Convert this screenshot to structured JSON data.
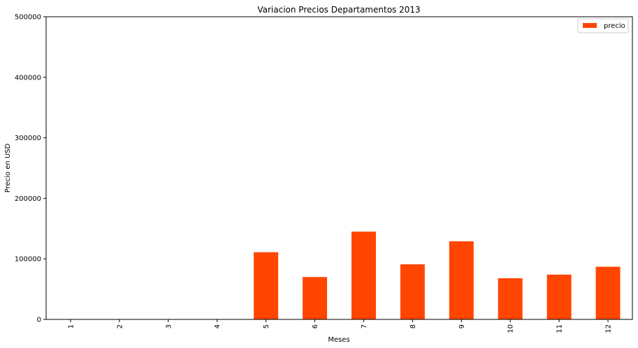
{
  "chart_data": {
    "type": "bar",
    "title": "Variacion Precios Departamentos 2013",
    "xlabel": "Meses",
    "ylabel": "Precio en USD",
    "categories": [
      "1",
      "2",
      "3",
      "4",
      "5",
      "6",
      "7",
      "8",
      "9",
      "10",
      "11",
      "12"
    ],
    "series": [
      {
        "name": "precio",
        "color": "#ff4500",
        "values": [
          0,
          0,
          0,
          0,
          111000,
          70000,
          145000,
          91000,
          129000,
          68000,
          74000,
          87000
        ]
      }
    ],
    "ylim": [
      0,
      500000
    ],
    "yticks": [
      "0",
      "100000",
      "200000",
      "300000",
      "400000",
      "500000"
    ],
    "legend_position": "top-right",
    "grid": false
  }
}
